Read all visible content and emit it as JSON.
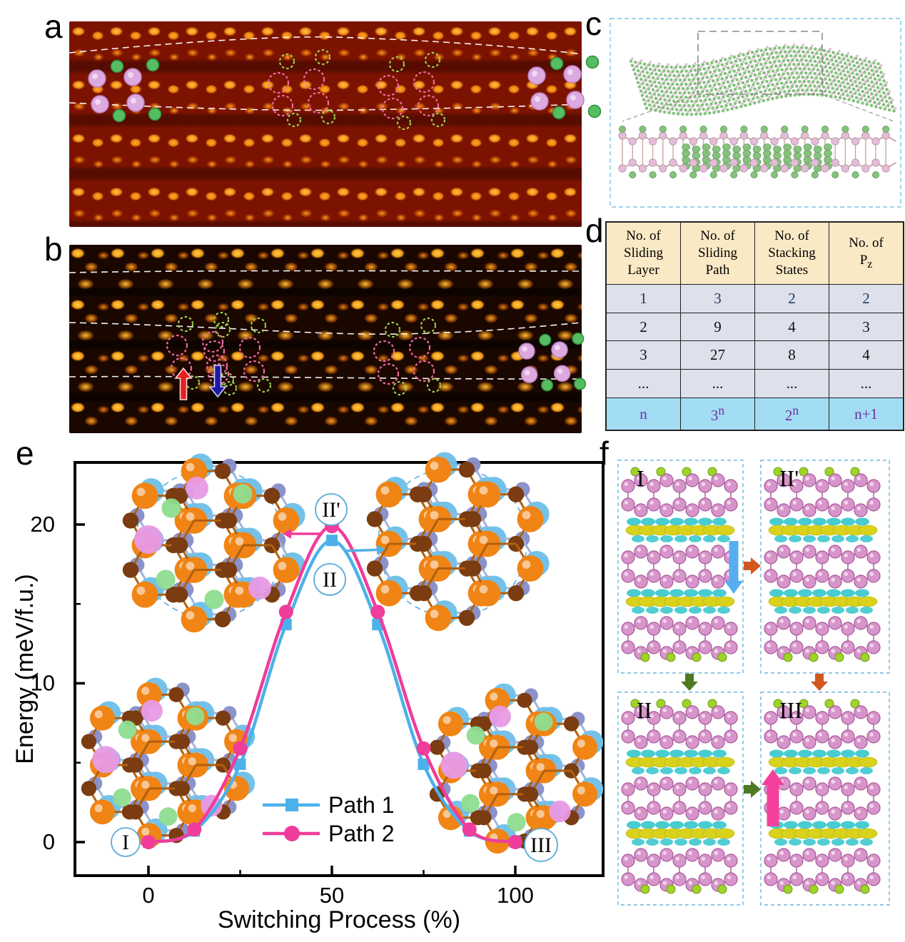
{
  "figure": {
    "panel_labels": {
      "a": "a",
      "b": "b",
      "c": "c",
      "d": "d",
      "e": "e",
      "f": "f"
    }
  },
  "table": {
    "headers": [
      [
        "No. of",
        "Sliding",
        "Layer"
      ],
      [
        "No. of",
        "Sliding",
        "Path"
      ],
      [
        "No. of",
        "Stacking",
        "States"
      ],
      [
        "No. of",
        "P_z"
      ]
    ],
    "rows": [
      [
        "1",
        "3",
        "2",
        "2"
      ],
      [
        "2",
        "9",
        "4",
        "3"
      ],
      [
        "3",
        "27",
        "8",
        "4"
      ],
      [
        "...",
        "...",
        "...",
        "..."
      ],
      [
        "n",
        "3^n",
        "2^n",
        "n+1"
      ]
    ],
    "row_text_colors": [
      "#1f3864",
      "#111111",
      "#111111",
      "#111111",
      "#7030a0"
    ],
    "colors": {
      "header_bg": "#f9e9c5",
      "row_bg": "#dee0eb",
      "last_row_bg": "#a3ddf3",
      "grid": "#222222"
    }
  },
  "chart_data": {
    "type": "line",
    "x": [
      0,
      12.5,
      25,
      37.5,
      50,
      62.5,
      75,
      87.5,
      100
    ],
    "series": [
      {
        "name": "Path 1",
        "values": [
          0,
          0.7,
          4.9,
          13.7,
          19.0,
          13.7,
          4.9,
          0.7,
          0
        ],
        "color": "#4cb1ea",
        "marker": "square"
      },
      {
        "name": "Path 2",
        "values": [
          0,
          0.8,
          5.9,
          14.5,
          19.9,
          14.5,
          5.9,
          0.8,
          0
        ],
        "color": "#f03c9a",
        "marker": "circle"
      }
    ],
    "title": "",
    "xlabel": "Switching Process (%)",
    "ylabel": "Energy (meV/f.u.)",
    "xticks": [
      0,
      50,
      100
    ],
    "yticks": [
      0,
      10,
      20
    ],
    "xminor": [
      25,
      75
    ],
    "yminor": [
      5,
      15
    ],
    "xlim": [
      -20,
      123
    ],
    "ylim": [
      -2.1,
      24
    ],
    "grid": false,
    "legend_position": "bottom-center",
    "state_labels": {
      "I": "I",
      "II": "II",
      "IIp": "II'",
      "III": "III"
    },
    "circle_stroke": "#5aabdb"
  },
  "panel_f": {
    "boxes": [
      {
        "label": "I"
      },
      {
        "label": "II'"
      },
      {
        "label": "II"
      },
      {
        "label": "III"
      }
    ],
    "arrow_colors": {
      "blue_down": "#56aef0",
      "orange": "#d2571e",
      "green": "#4e7a22",
      "pink_up": "#f4409c"
    },
    "atom_colors": {
      "pink": "#d795cb",
      "pink_edge": "#a85898",
      "green": "#9ed32a",
      "density_yellow": "#d9d21c",
      "density_cyan": "#3ec9cf"
    },
    "box_border": "#6db6dd"
  },
  "panel_c": {
    "atom_colors": {
      "green": "#86c27e",
      "pink": "#e3bcd6",
      "bond": "#c9a8a0"
    },
    "box_border": "#7ec4e8",
    "inset_border": "#8a8a8a"
  },
  "panel_ab": {
    "marker_colors": {
      "pink_atom": "#dcaade",
      "pink_edge": "#b97cc0",
      "green_atom": "#55bd62",
      "green_edge": "#2e8d3c",
      "dash_pink": "#f26a9e",
      "dash_green": "#9ad24c",
      "guide": "#ffffff",
      "red_arrow": "#e31f1f",
      "blue_arrow": "#20189e"
    }
  }
}
